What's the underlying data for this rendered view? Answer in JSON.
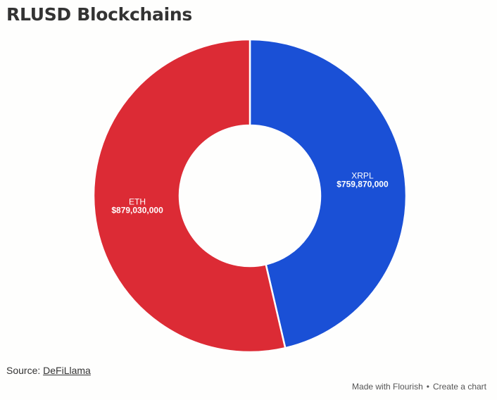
{
  "title": "RLUSD Blockchains",
  "chart_data": {
    "type": "pie",
    "donut": true,
    "title": "RLUSD Blockchains",
    "categories": [
      "XRPL",
      "ETH"
    ],
    "values": [
      759870000,
      879030000
    ],
    "value_labels": [
      "$759,870,000",
      "$879,030,000"
    ],
    "colors": [
      "#1a50d6",
      "#dc2b35"
    ],
    "legend": "none"
  },
  "footer": {
    "source_prefix": "Source: ",
    "source_link": "DeFiLlama",
    "credit_made": "Made with Flourish",
    "credit_sep": "•",
    "credit_create": "Create a chart"
  }
}
